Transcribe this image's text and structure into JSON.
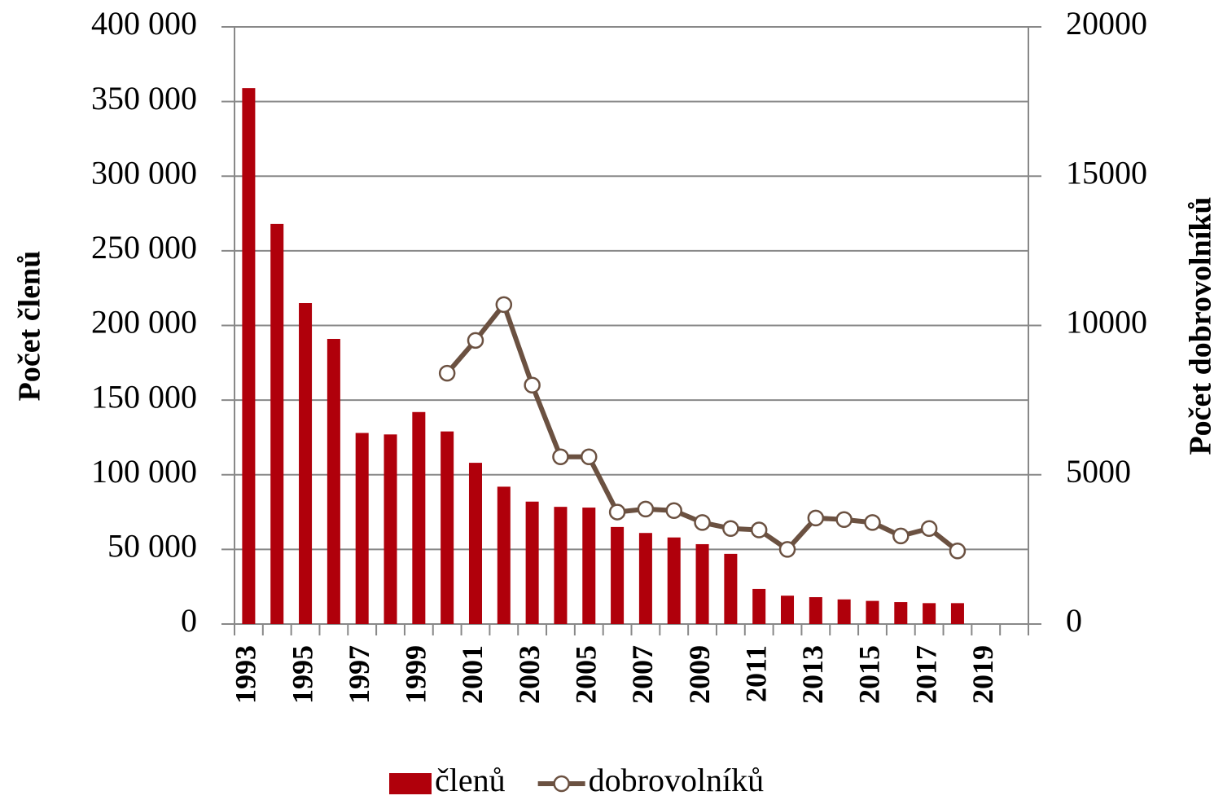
{
  "chart_data": {
    "type": "bar_line",
    "y_label": "Počet členů",
    "y2_label": "Počet dobrovolníků",
    "categories": [
      "1993",
      null,
      "1995",
      null,
      "1997",
      null,
      "1999",
      null,
      "2001",
      null,
      "2003",
      null,
      "2005",
      null,
      "2007",
      null,
      "2009",
      null,
      "2011",
      null,
      "2013",
      null,
      "2015",
      null,
      "2017",
      null,
      "2019",
      null
    ],
    "series": [
      {
        "name": "členů",
        "type": "bar",
        "color": "#b0000b",
        "axis": "y",
        "values": [
          359000,
          268000,
          215000,
          191000,
          128000,
          127000,
          142000,
          129000,
          108000,
          92000,
          82000,
          78500,
          78000,
          65000,
          61000,
          58000,
          53500,
          47000,
          23500,
          19000,
          18000,
          16500,
          15500,
          14700,
          14000,
          14000,
          null,
          null
        ]
      },
      {
        "name": "dobrovolníků",
        "type": "line",
        "color": "#6b5141",
        "axis": "y2",
        "values": [
          null,
          null,
          null,
          null,
          null,
          null,
          null,
          8400,
          9500,
          10700,
          8000,
          5600,
          5600,
          3750,
          3850,
          3800,
          3400,
          3200,
          3150,
          2500,
          3550,
          3500,
          3400,
          2950,
          3200,
          2450,
          null,
          null
        ]
      }
    ],
    "ylim": [
      0,
      400000
    ],
    "yticks": [
      0,
      {
        "value": 50000,
        "label": "50 000"
      },
      {
        "value": 100000,
        "label": "100 000"
      },
      {
        "value": 150000,
        "label": "150 000"
      },
      {
        "value": 200000,
        "label": "200 000"
      },
      {
        "value": 250000,
        "label": "250 000"
      },
      {
        "value": 300000,
        "label": "300 000"
      },
      {
        "value": 350000,
        "label": "350 000"
      },
      {
        "value": 400000,
        "label": "400 000"
      }
    ],
    "y2lim": [
      0,
      20000
    ],
    "y2ticks": [
      0,
      5000,
      10000,
      15000,
      20000
    ],
    "grid": true,
    "legend": "bottom"
  }
}
